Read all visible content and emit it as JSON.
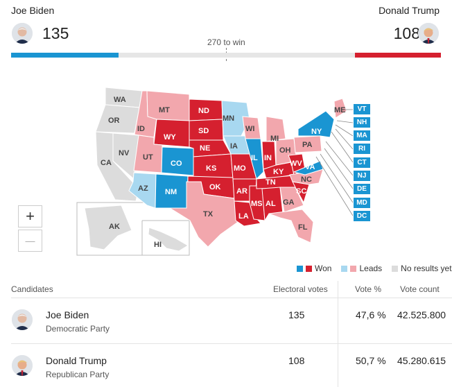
{
  "header": {
    "left_candidate": {
      "name": "Joe Biden",
      "electoral_votes": "135"
    },
    "right_candidate": {
      "name": "Donald Trump",
      "electoral_votes": "108"
    },
    "threshold_label": "270 to win",
    "biden_share": 0.25,
    "trump_share": 0.2
  },
  "colors": {
    "dem_won": "#1a95d2",
    "dem_leads": "#a8d8f0",
    "rep_won": "#d5202f",
    "rep_leads": "#f2a7ad",
    "no_results": "#dcdcdc"
  },
  "map": {
    "states": [
      {
        "abbr": "WA",
        "status": "none"
      },
      {
        "abbr": "OR",
        "status": "none"
      },
      {
        "abbr": "CA",
        "status": "none"
      },
      {
        "abbr": "NV",
        "status": "none"
      },
      {
        "abbr": "ID",
        "status": "rep_leads"
      },
      {
        "abbr": "MT",
        "status": "rep_leads"
      },
      {
        "abbr": "WY",
        "status": "rep_won"
      },
      {
        "abbr": "UT",
        "status": "rep_leads"
      },
      {
        "abbr": "AZ",
        "status": "dem_leads"
      },
      {
        "abbr": "CO",
        "status": "dem_won"
      },
      {
        "abbr": "NM",
        "status": "dem_won"
      },
      {
        "abbr": "ND",
        "status": "rep_won"
      },
      {
        "abbr": "SD",
        "status": "rep_won"
      },
      {
        "abbr": "NE",
        "status": "rep_won"
      },
      {
        "abbr": "KS",
        "status": "rep_won"
      },
      {
        "abbr": "OK",
        "status": "rep_won"
      },
      {
        "abbr": "TX",
        "status": "rep_leads"
      },
      {
        "abbr": "MN",
        "status": "dem_leads"
      },
      {
        "abbr": "IA",
        "status": "dem_leads"
      },
      {
        "abbr": "MO",
        "status": "rep_won"
      },
      {
        "abbr": "AR",
        "status": "rep_won"
      },
      {
        "abbr": "LA",
        "status": "rep_won"
      },
      {
        "abbr": "WI",
        "status": "rep_leads"
      },
      {
        "abbr": "IL",
        "status": "dem_won"
      },
      {
        "abbr": "MS",
        "status": "rep_won"
      },
      {
        "abbr": "MI",
        "status": "rep_leads"
      },
      {
        "abbr": "IN",
        "status": "rep_won"
      },
      {
        "abbr": "KY",
        "status": "rep_won"
      },
      {
        "abbr": "TN",
        "status": "rep_won"
      },
      {
        "abbr": "AL",
        "status": "rep_won"
      },
      {
        "abbr": "OH",
        "status": "rep_leads"
      },
      {
        "abbr": "WV",
        "status": "rep_won"
      },
      {
        "abbr": "GA",
        "status": "rep_leads"
      },
      {
        "abbr": "FL",
        "status": "rep_leads"
      },
      {
        "abbr": "SC",
        "status": "rep_won"
      },
      {
        "abbr": "NC",
        "status": "rep_leads"
      },
      {
        "abbr": "VA",
        "status": "dem_won"
      },
      {
        "abbr": "PA",
        "status": "rep_leads"
      },
      {
        "abbr": "NY",
        "status": "dem_won"
      },
      {
        "abbr": "ME",
        "status": "rep_leads"
      },
      {
        "abbr": "AK",
        "status": "none"
      },
      {
        "abbr": "HI",
        "status": "none"
      }
    ],
    "northeast_boxes": [
      "VT",
      "NH",
      "MA",
      "RI",
      "CT",
      "NJ",
      "DE",
      "MD",
      "DC"
    ]
  },
  "zoom": {
    "in_label": "+",
    "out_label": "—"
  },
  "legend": {
    "won": "Won",
    "leads": "Leads",
    "none": "No results yet"
  },
  "table": {
    "headers": {
      "candidates": "Candidates",
      "electoral": "Electoral votes",
      "vote_pct": "Vote %",
      "vote_count": "Vote count"
    },
    "rows": [
      {
        "name": "Joe Biden",
        "party": "Democratic Party",
        "electoral": "135",
        "pct": "47,6 %",
        "count": "42.525.800"
      },
      {
        "name": "Donald Trump",
        "party": "Republican Party",
        "electoral": "108",
        "pct": "50,7 %",
        "count": "45.280.615"
      }
    ]
  }
}
